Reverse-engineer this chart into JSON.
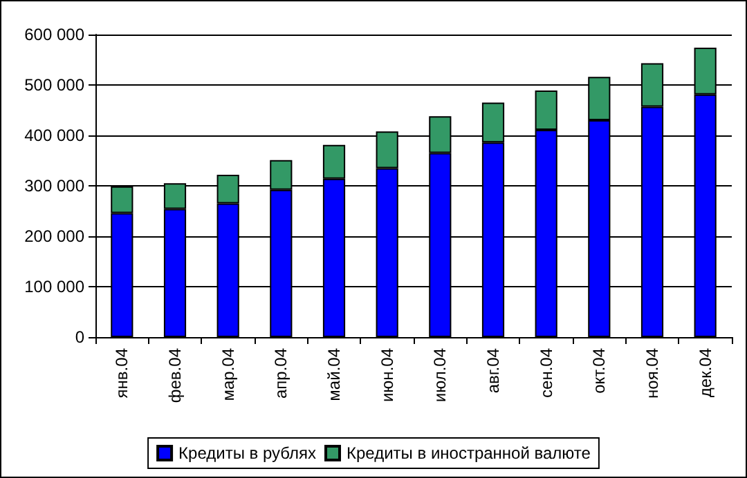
{
  "chart_data": {
    "type": "bar",
    "stacked": true,
    "categories": [
      "янв.04",
      "фев.04",
      "мар.04",
      "апр.04",
      "май.04",
      "июн.04",
      "июл.04",
      "авг.04",
      "сен.04",
      "окт.04",
      "ноя.04",
      "дек.04"
    ],
    "series": [
      {
        "name": "Кредиты в рублях",
        "color": "#0000ff",
        "values": [
          246000,
          254000,
          265000,
          292000,
          314000,
          335000,
          365000,
          386000,
          411000,
          430000,
          457000,
          481000
        ]
      },
      {
        "name": "Кредиты в иностранной валюте",
        "color": "#339966",
        "values": [
          53000,
          51000,
          57000,
          59000,
          67000,
          73000,
          73000,
          79000,
          78000,
          86000,
          86000,
          93000
        ]
      }
    ],
    "ylim": [
      0,
      600000
    ],
    "yticks": [
      {
        "value": 0,
        "label": "0"
      },
      {
        "value": 100000,
        "label": "100 000"
      },
      {
        "value": 200000,
        "label": "200 000"
      },
      {
        "value": 300000,
        "label": "300 000"
      },
      {
        "value": 400000,
        "label": "400 000"
      },
      {
        "value": 500000,
        "label": "500 000"
      },
      {
        "value": 600000,
        "label": "600 000"
      }
    ],
    "grid": "y",
    "legend": "bottom"
  }
}
